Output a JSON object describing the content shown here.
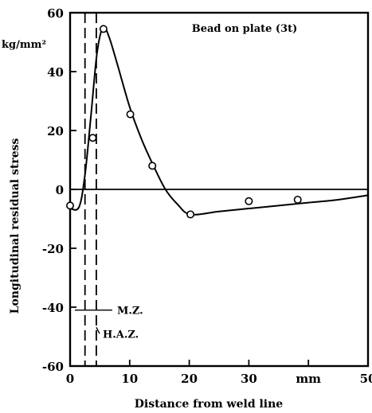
{
  "chart_data": {
    "type": "line",
    "title": "Bead on plate (3t)",
    "xlabel": "Distance from weld line",
    "ylabel": "Longitudinal residual stress",
    "x_unit": "mm",
    "y_unit": "kg/mm²",
    "xlim": [
      0,
      50
    ],
    "ylim": [
      -60,
      60
    ],
    "x_ticks": [
      0,
      10,
      20,
      30,
      40,
      50
    ],
    "x_tick_labels": [
      "0",
      "10",
      "20",
      "30",
      "mm",
      "50"
    ],
    "y_ticks": [
      60,
      40,
      20,
      0,
      -20,
      -40,
      -60
    ],
    "y_tick_labels": [
      "60",
      "40",
      "20",
      "0",
      "-20",
      "-40",
      "-60"
    ],
    "grid": false,
    "zero_line": true,
    "series": [
      {
        "kind": "curve",
        "x": [
          0,
          1.5,
          2.5,
          3.5,
          4.5,
          5.5,
          6.5,
          8,
          10,
          12,
          14,
          16,
          18,
          20.2,
          25,
          30,
          35,
          40,
          45,
          50
        ],
        "y": [
          -6.5,
          -6,
          5,
          25,
          46,
          55,
          52,
          42,
          28,
          17,
          8,
          0,
          -5,
          -8.5,
          -7.5,
          -6.5,
          -5.5,
          -4.5,
          -3.5,
          -2
        ]
      },
      {
        "kind": "measured",
        "marker": "circle",
        "x": [
          0,
          3.8,
          5.6,
          10.1,
          13.8,
          20.2,
          30,
          38.2
        ],
        "y": [
          -5.5,
          17.5,
          54.5,
          25.5,
          8,
          -8.5,
          -4,
          -3.5
        ]
      }
    ],
    "boundaries": [
      {
        "x": 2.5,
        "label": "M.Z."
      },
      {
        "x": 4.4,
        "label": "H.A.Z."
      }
    ]
  }
}
